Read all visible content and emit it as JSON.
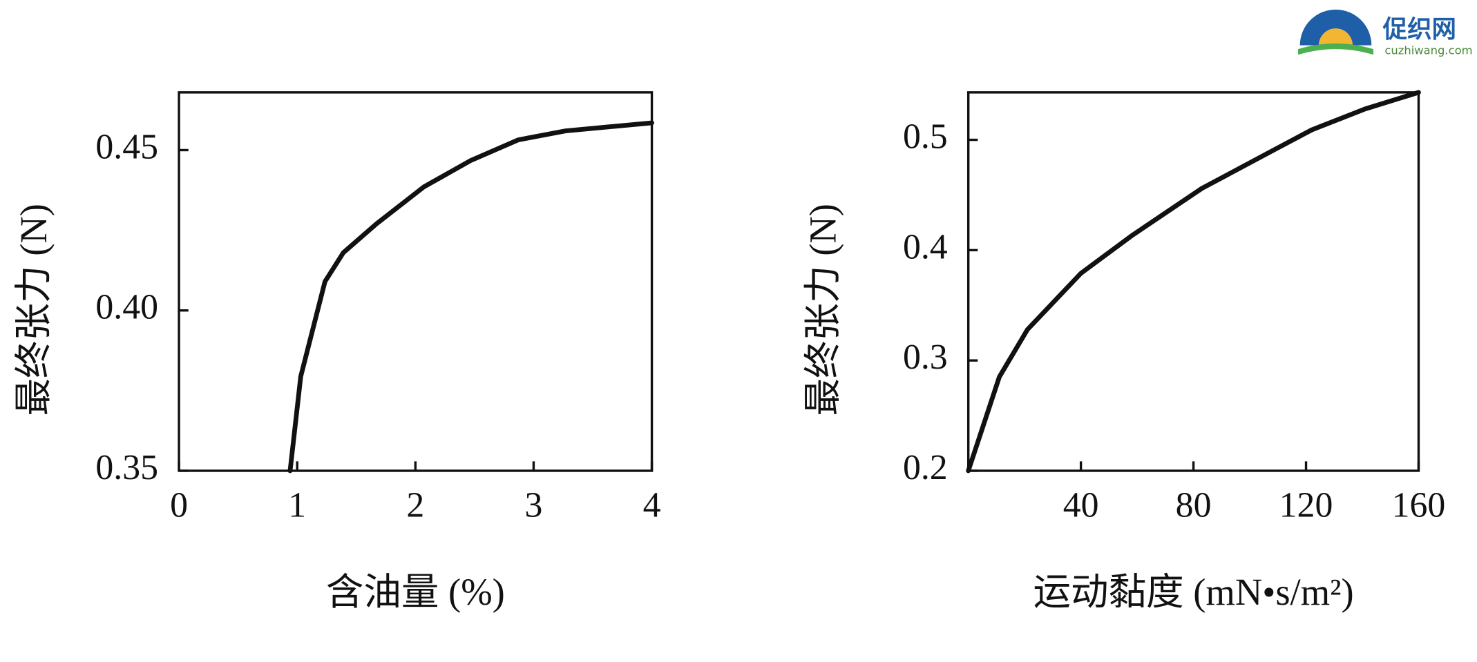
{
  "logo": {
    "name": "促织网",
    "url": "cuzhiwang.com"
  },
  "chart_data": [
    {
      "type": "line",
      "xlabel": "含油量 (%)",
      "ylabel": "最终张力 (N)",
      "x": [
        0.94,
        1.03,
        1.235,
        1.39,
        1.67,
        2.07,
        2.47,
        2.87,
        3.27,
        4.0
      ],
      "values": [
        0.35,
        0.3794,
        0.409,
        0.418,
        0.427,
        0.4385,
        0.4468,
        0.4532,
        0.456,
        0.4585
      ],
      "color": "#111111",
      "xlim": [
        0,
        4
      ],
      "xticks": [
        0,
        1,
        2,
        3,
        4
      ],
      "ylim": [
        0.35,
        0.468
      ],
      "yticks": [
        0.35,
        {
          "value": 0.4,
          "label": "0.40"
        },
        0.45
      ]
    },
    {
      "type": "line",
      "xlabel": "运动黏度 (mN•s/m²)",
      "ylabel": "最终张力 (N)",
      "x": [
        0,
        11,
        21,
        40,
        58,
        83,
        108,
        122,
        141,
        160
      ],
      "values": [
        0.2,
        0.285,
        0.328,
        0.379,
        0.413,
        0.456,
        0.49,
        0.509,
        0.528,
        0.543
      ],
      "color": "#111111",
      "xlim": [
        0,
        160
      ],
      "xticks": [
        40,
        80,
        120,
        160
      ],
      "ylim": [
        0.2,
        0.543
      ],
      "yticks": [
        0.2,
        0.3,
        0.4,
        0.5
      ]
    }
  ]
}
